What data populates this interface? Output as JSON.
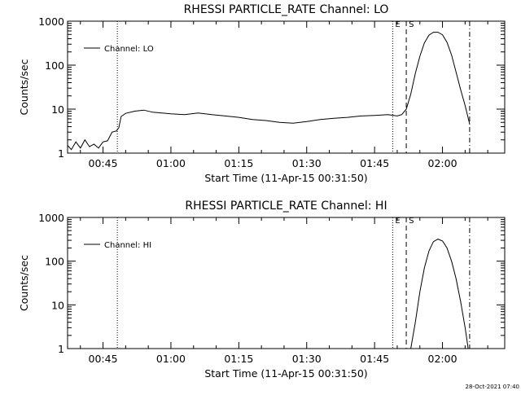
{
  "footer": {
    "timestamp": "28-Oct-2021 07:40"
  },
  "chart_data": [
    {
      "type": "line",
      "title": "RHESSI PARTICLE_RATE Channel: LO",
      "xlabel": "Start Time (11-Apr-15 00:31:50)",
      "ylabel": "Counts/sec",
      "yscale": "log",
      "ylim": [
        1,
        1000
      ],
      "y_tick_labels": [
        "1",
        "10",
        "100",
        "1000"
      ],
      "x_tick_labels": [
        "00:45",
        "01:00",
        "01:15",
        "01:30",
        "01:45",
        "02:00"
      ],
      "xlim": [
        "00:37:10",
        "02:13:45"
      ],
      "legend": {
        "entries": [
          "Channel: LO"
        ],
        "placement": "top-left"
      },
      "markers": [
        {
          "label": "",
          "time": "00:48:10",
          "style": "dotted"
        },
        {
          "label": "E",
          "time": "01:49:00",
          "style": "dotted"
        },
        {
          "label": "S",
          "time": "01:52:00",
          "style": "dashed"
        },
        {
          "label": "",
          "time": "02:06:00",
          "style": "dash-dot"
        }
      ],
      "series": [
        {
          "name": "Channel: LO",
          "x": [
            "00:37:10",
            "00:38:00",
            "00:39:00",
            "00:40:00",
            "00:41:00",
            "00:42:00",
            "00:43:00",
            "00:44:00",
            "00:45:00",
            "00:46:00",
            "00:47:00",
            "00:48:00",
            "00:48:30",
            "00:49:00",
            "00:50:00",
            "00:52:00",
            "00:54:00",
            "00:56:00",
            "00:58:00",
            "01:00:00",
            "01:03:00",
            "01:06:00",
            "01:09:00",
            "01:12:00",
            "01:15:00",
            "01:18:00",
            "01:21:00",
            "01:24:00",
            "01:27:00",
            "01:30:00",
            "01:33:00",
            "01:36:00",
            "01:39:00",
            "01:42:00",
            "01:45:00",
            "01:48:00",
            "01:50:00",
            "01:51:00",
            "01:52:00",
            "01:53:00",
            "01:54:00",
            "01:55:00",
            "01:56:00",
            "01:57:00",
            "01:58:00",
            "01:59:00",
            "02:00:00",
            "02:01:00",
            "02:02:00",
            "02:03:00",
            "02:04:00",
            "02:05:00",
            "02:06:00"
          ],
          "values": [
            1.5,
            1.2,
            1.8,
            1.3,
            2.0,
            1.4,
            1.6,
            1.3,
            1.8,
            1.9,
            3.0,
            3.2,
            3.8,
            6.8,
            8.0,
            9.0,
            9.5,
            8.5,
            8.2,
            7.8,
            7.5,
            8.2,
            7.5,
            7.0,
            6.5,
            5.8,
            5.5,
            5.0,
            4.8,
            5.2,
            5.8,
            6.2,
            6.5,
            7.0,
            7.2,
            7.5,
            7.0,
            7.5,
            10,
            22,
            65,
            160,
            320,
            480,
            560,
            560,
            490,
            330,
            170,
            70,
            28,
            12,
            4.6
          ]
        }
      ]
    },
    {
      "type": "line",
      "title": "RHESSI PARTICLE_RATE Channel: HI",
      "xlabel": "Start Time (11-Apr-15 00:31:50)",
      "ylabel": "Counts/sec",
      "yscale": "log",
      "ylim": [
        1,
        1000
      ],
      "y_tick_labels": [
        "1",
        "10",
        "100",
        "1000"
      ],
      "x_tick_labels": [
        "00:45",
        "01:00",
        "01:15",
        "01:30",
        "01:45",
        "02:00"
      ],
      "xlim": [
        "00:37:10",
        "02:13:45"
      ],
      "legend": {
        "entries": [
          "Channel: HI"
        ],
        "placement": "top-left"
      },
      "markers": [
        {
          "label": "",
          "time": "00:48:10",
          "style": "dotted"
        },
        {
          "label": "E",
          "time": "01:49:00",
          "style": "dotted"
        },
        {
          "label": "S",
          "time": "01:52:00",
          "style": "dashed"
        },
        {
          "label": "",
          "time": "02:06:00",
          "style": "dash-dot"
        }
      ],
      "series": [
        {
          "name": "Channel: HI",
          "x": [
            "01:53:00",
            "01:54:00",
            "01:55:00",
            "01:56:00",
            "01:57:00",
            "01:58:00",
            "01:59:00",
            "02:00:00",
            "02:01:00",
            "02:02:00",
            "02:03:00",
            "02:04:00",
            "02:05:00",
            "02:05:40"
          ],
          "values": [
            1.0,
            4.0,
            20,
            70,
            170,
            280,
            320,
            290,
            200,
            100,
            40,
            12,
            3,
            1.0
          ]
        }
      ]
    }
  ]
}
